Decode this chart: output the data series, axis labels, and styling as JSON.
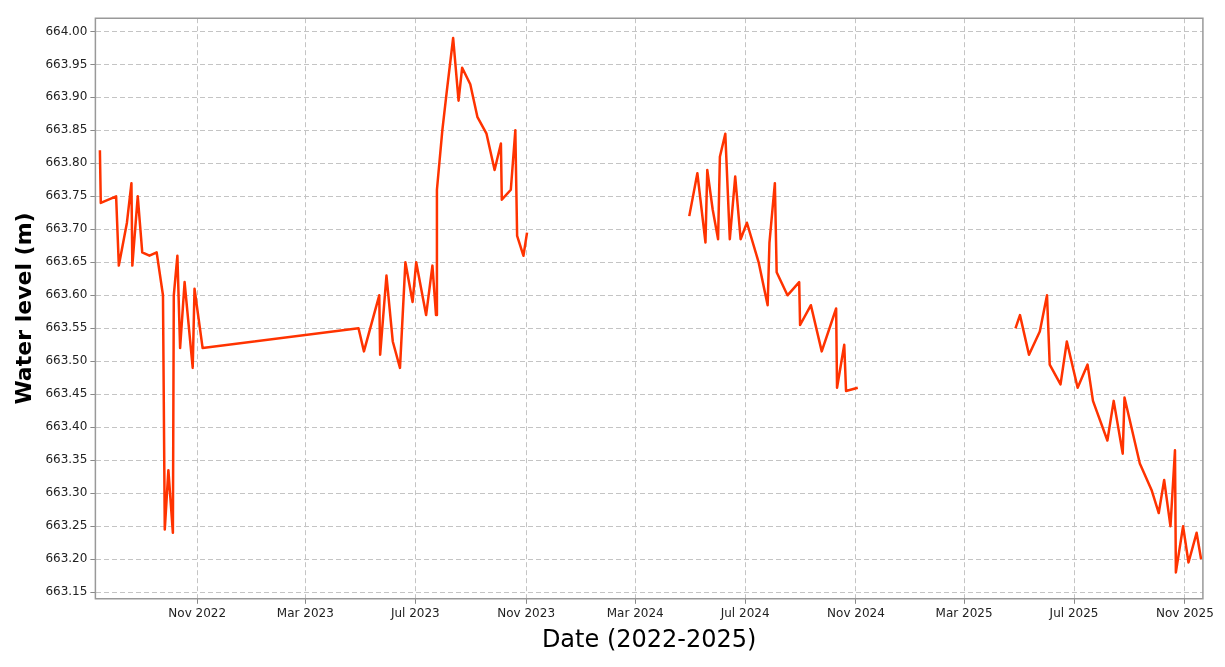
{
  "chart_data": {
    "type": "line",
    "xlabel": "Date (2022-2025)",
    "ylabel": "Water level (m)",
    "x": [
      "2022-07-16",
      "2022-07-17",
      "2022-08-03",
      "2022-08-06",
      "2022-08-15",
      "2022-08-20",
      "2022-08-21",
      "2022-08-27",
      "2022-09-01",
      "2022-09-09",
      "2022-09-17",
      "2022-09-24",
      "2022-09-26",
      "2022-09-30",
      "2022-10-05",
      "2022-10-06",
      "2022-10-10",
      "2022-10-13",
      "2022-10-18",
      "2022-10-27",
      "2022-10-29",
      "2022-11-07",
      "2023-04-29",
      "2023-05-05",
      "2023-05-15",
      "2023-05-22",
      "2023-05-23",
      "2023-05-30",
      "2023-06-06",
      "2023-06-14",
      "2023-06-20",
      "2023-06-28",
      "2023-07-02",
      "2023-07-13",
      "2023-07-20",
      "2023-07-24",
      "2023-07-25",
      "2023-07-31",
      "2023-08-05",
      "2023-08-12",
      "2023-08-18",
      "2023-08-22",
      "2023-08-31",
      "2023-09-08",
      "2023-09-18",
      "2023-09-27",
      "2023-10-04",
      "2023-10-05",
      "2023-10-15",
      "2023-10-20",
      "2023-10-22",
      "2023-10-29",
      "2023-11-02",
      "2024-01-01",
      "2024-04-30",
      "2024-05-09",
      "2024-05-18",
      "2024-05-20",
      "2024-05-26",
      "2024-06-01",
      "2024-06-03",
      "2024-06-09",
      "2024-06-14",
      "2024-06-20",
      "2024-06-26",
      "2024-07-03",
      "2024-07-16",
      "2024-07-26",
      "2024-07-28",
      "2024-08-03",
      "2024-08-05",
      "2024-08-17",
      "2024-08-30",
      "2024-08-31",
      "2024-09-12",
      "2024-09-24",
      "2024-10-10",
      "2024-10-11",
      "2024-10-19",
      "2024-10-21",
      "2024-11-03",
      "2025-01-01",
      "2025-04-27",
      "2025-05-02",
      "2025-05-12",
      "2025-05-24",
      "2025-06-01",
      "2025-06-04",
      "2025-06-16",
      "2025-06-23",
      "2025-07-05",
      "2025-07-16",
      "2025-07-22",
      "2025-08-07",
      "2025-08-14",
      "2025-08-24",
      "2025-08-26",
      "2025-09-12",
      "2025-09-25",
      "2025-10-03",
      "2025-10-09",
      "2025-10-16",
      "2025-10-21",
      "2025-10-22",
      "2025-10-30",
      "2025-11-05",
      "2025-11-14",
      "2025-11-19"
    ],
    "series": [
      {
        "color": "#ff3300",
        "values": [
          663.82,
          663.74,
          663.75,
          663.645,
          663.71,
          663.77,
          663.645,
          663.75,
          663.665,
          663.66,
          663.665,
          663.6,
          663.245,
          663.335,
          663.24,
          663.6,
          663.66,
          663.52,
          663.62,
          663.49,
          663.61,
          663.52,
          663.55,
          663.515,
          663.565,
          663.6,
          663.51,
          663.63,
          663.53,
          663.49,
          663.65,
          663.59,
          663.65,
          663.57,
          663.645,
          663.57,
          663.76,
          663.85,
          663.91,
          663.99,
          663.895,
          663.945,
          663.92,
          663.87,
          663.845,
          663.79,
          663.83,
          663.745,
          663.76,
          663.85,
          663.69,
          663.66,
          663.695,
          null,
          663.72,
          663.785,
          663.68,
          663.79,
          663.73,
          663.685,
          663.81,
          663.845,
          663.685,
          663.78,
          663.685,
          663.71,
          663.65,
          663.585,
          663.68,
          663.77,
          663.635,
          663.6,
          663.62,
          663.555,
          663.585,
          663.515,
          663.58,
          663.46,
          663.525,
          663.455,
          663.46,
          null,
          663.55,
          663.57,
          663.51,
          663.545,
          663.6,
          663.495,
          663.465,
          663.53,
          663.46,
          663.495,
          663.44,
          663.38,
          663.44,
          663.36,
          663.445,
          663.345,
          663.305,
          663.27,
          663.32,
          663.25,
          663.365,
          663.18,
          663.25,
          663.195,
          663.24,
          663.2
        ]
      }
    ],
    "xlim": [
      "2022-07-11",
      "2025-11-21"
    ],
    "xticks": [
      {
        "value": "2022-11-01",
        "label": "Nov 2022"
      },
      {
        "value": "2023-03-01",
        "label": "Mar 2023"
      },
      {
        "value": "2023-07-01",
        "label": "Jul 2023"
      },
      {
        "value": "2023-11-01",
        "label": "Nov 2023"
      },
      {
        "value": "2024-03-01",
        "label": "Mar 2024"
      },
      {
        "value": "2024-07-01",
        "label": "Jul 2024"
      },
      {
        "value": "2024-11-01",
        "label": "Nov 2024"
      },
      {
        "value": "2025-03-01",
        "label": "Mar 2025"
      },
      {
        "value": "2025-07-01",
        "label": "Jul 2025"
      },
      {
        "value": "2025-11-01",
        "label": "Nov 2025"
      }
    ],
    "ylim": [
      663.14,
      664.02
    ],
    "yticks": [
      663.15,
      {
        "value": 663.2,
        "label": "663.20"
      },
      663.25,
      {
        "value": 663.3,
        "label": "663.30"
      },
      663.35,
      {
        "value": 663.4,
        "label": "663.40"
      },
      663.45,
      {
        "value": 663.5,
        "label": "663.50"
      },
      663.55,
      {
        "value": 663.6,
        "label": "663.60"
      },
      663.65,
      {
        "value": 663.7,
        "label": "663.70"
      },
      663.75,
      {
        "value": 663.8,
        "label": "663.80"
      },
      663.85,
      {
        "value": 663.9,
        "label": "663.90"
      },
      663.95,
      {
        "value": 664,
        "label": "664.00"
      }
    ],
    "grid": true,
    "legend": false,
    "marker": "none",
    "line_style": "solid"
  }
}
